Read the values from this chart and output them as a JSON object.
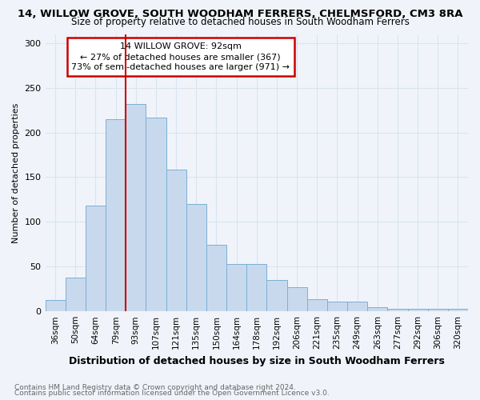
{
  "title1": "14, WILLOW GROVE, SOUTH WOODHAM FERRERS, CHELMSFORD, CM3 8RA",
  "title2": "Size of property relative to detached houses in South Woodham Ferrers",
  "xlabel": "Distribution of detached houses by size in South Woodham Ferrers",
  "ylabel": "Number of detached properties",
  "footnote1": "Contains HM Land Registry data © Crown copyright and database right 2024.",
  "footnote2": "Contains public sector information licensed under the Open Government Licence v3.0.",
  "categories": [
    "36sqm",
    "50sqm",
    "64sqm",
    "79sqm",
    "93sqm",
    "107sqm",
    "121sqm",
    "135sqm",
    "150sqm",
    "164sqm",
    "178sqm",
    "192sqm",
    "206sqm",
    "221sqm",
    "235sqm",
    "249sqm",
    "263sqm",
    "277sqm",
    "292sqm",
    "306sqm",
    "320sqm"
  ],
  "values": [
    13,
    38,
    118,
    215,
    232,
    217,
    158,
    120,
    74,
    53,
    53,
    35,
    27,
    14,
    11,
    11,
    5,
    3,
    3,
    3,
    3
  ],
  "bar_color": "#c9d9ed",
  "bar_edge_color": "#7aafd4",
  "property_line_index": 4,
  "annotation_title": "14 WILLOW GROVE: 92sqm",
  "annotation_line1": "← 27% of detached houses are smaller (367)",
  "annotation_line2": "73% of semi-detached houses are larger (971) →",
  "annotation_box_color": "#ffffff",
  "annotation_box_edge": "#cc0000",
  "property_line_color": "#cc0000",
  "ylim": [
    0,
    310
  ],
  "yticks": [
    0,
    50,
    100,
    150,
    200,
    250,
    300
  ],
  "bg_color": "#f0f4fa",
  "grid_color": "#d8e4f0"
}
